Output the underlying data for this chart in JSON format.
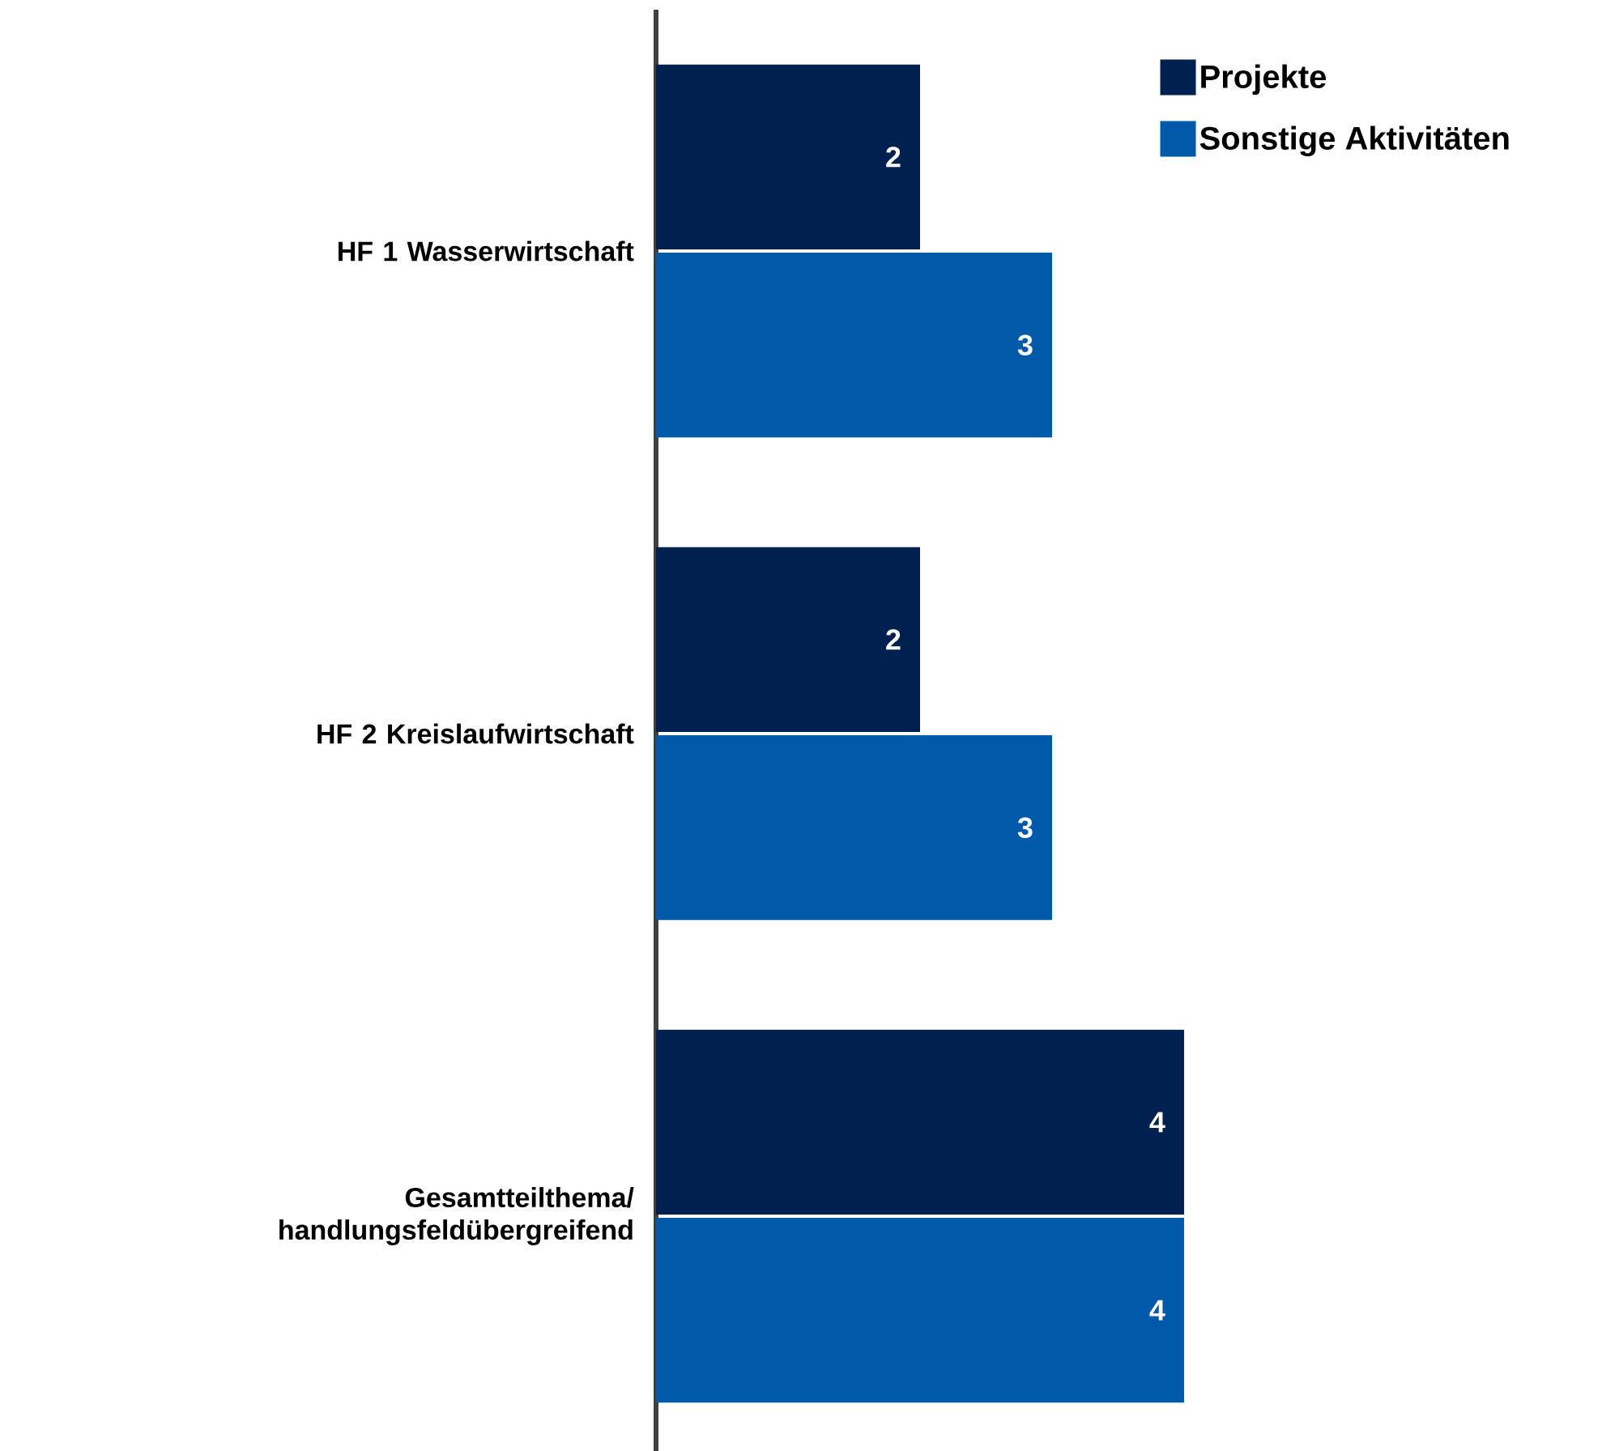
{
  "chart_data": {
    "type": "bar",
    "orientation": "horizontal",
    "categories": [
      "HF 1 Wasserwirtschaft",
      "HF 2 Kreislaufwirtschaft",
      "Gesamtteilthema/ handlungsfeldübergreifend"
    ],
    "series": [
      {
        "name": "Projekte",
        "color": "#002050",
        "values": [
          2,
          2,
          4
        ]
      },
      {
        "name": "Sonstige Aktivitäten",
        "color": "#005AA9",
        "values": [
          3,
          3,
          4
        ]
      }
    ],
    "tick_labels": "y",
    "data_labels": true,
    "legend": "top right"
  }
}
